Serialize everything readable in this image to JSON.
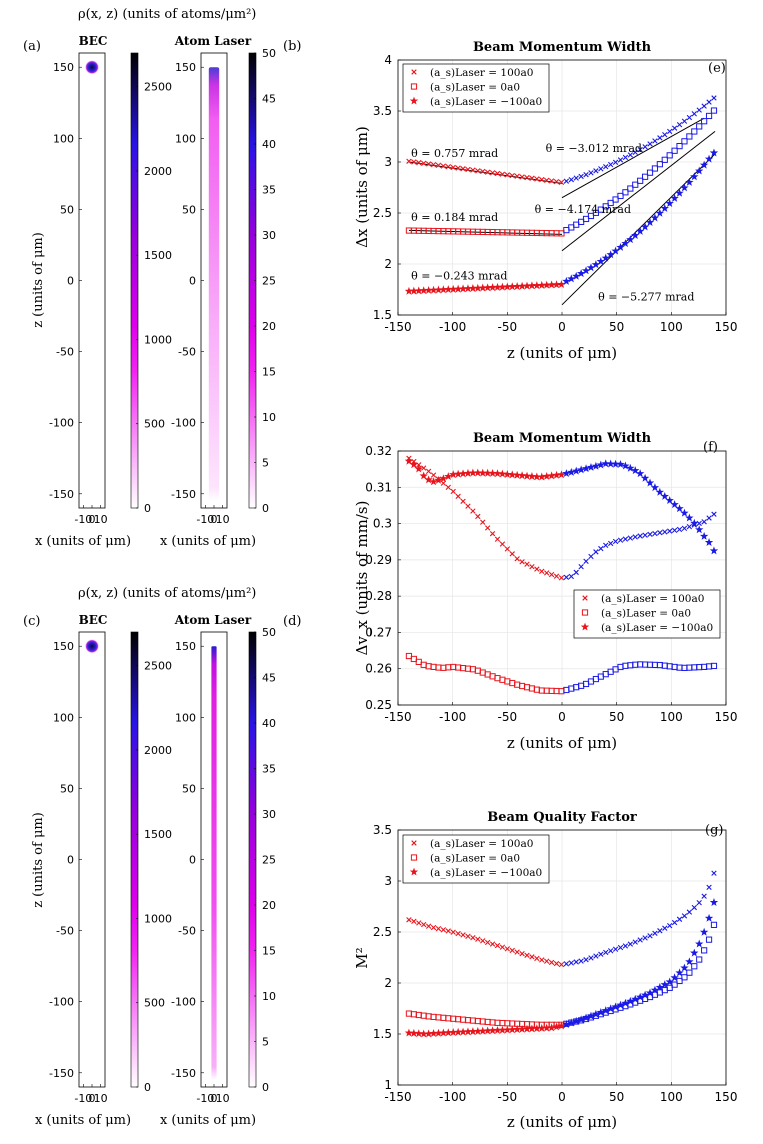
{
  "panel_group_title": "ρ(x, z) (units of atoms/μm²)",
  "panel_labels": {
    "a": "(a)",
    "b": "(b)",
    "c": "(c)",
    "d": "(d)",
    "e": "(e)",
    "f": "(f)",
    "g": "(g)"
  },
  "legend_entries": [
    "(a_s)Laser = 100a0",
    "(a_s)Laser = 0a0",
    "(a_s)Laser = −100a0"
  ],
  "colors": {
    "left_series": "#e8141c",
    "right_series": "#1a1ae6",
    "fit_line": "#000000",
    "grid": "#e6e6e6"
  },
  "chart_data": [
    {
      "id": "a",
      "type": "heatmap",
      "title": "BEC",
      "xlabel": "x (units of μm)",
      "ylabel": "z (units of μm)",
      "xlim": [
        -15,
        15
      ],
      "ylim": [
        -160,
        160
      ],
      "xticks": [
        "-10",
        "0",
        "10"
      ],
      "yticks": [
        "150",
        "100",
        "50",
        "0",
        "-50",
        "-100",
        "-150"
      ],
      "blob": {
        "x": 0,
        "z": 150,
        "radius": 5
      },
      "colorbar": {
        "min": 0,
        "max": 2700,
        "ticks": [
          "0",
          "500",
          "1000",
          "1500",
          "2000",
          "2500"
        ],
        "tick_values": [
          0,
          500,
          1000,
          1500,
          2000,
          2500
        ]
      }
    },
    {
      "id": "b",
      "type": "heatmap",
      "title": "Atom Laser",
      "xlabel": "x (units of μm)",
      "ylabel": "",
      "xlim": [
        -15,
        15
      ],
      "ylim": [
        -160,
        160
      ],
      "xticks": [
        "-10",
        "0",
        "10"
      ],
      "yticks": [
        "150",
        "100",
        "50",
        "0",
        "-50",
        "-100",
        "-150"
      ],
      "beam": {
        "z_top": 150,
        "z_bottom": -155,
        "half_width": 6,
        "profile": "diffuse"
      },
      "colorbar": {
        "min": 0,
        "max": 50,
        "ticks": [
          "0",
          "5",
          "10",
          "15",
          "20",
          "25",
          "30",
          "35",
          "40",
          "45",
          "50"
        ],
        "tick_values": [
          0,
          5,
          10,
          15,
          20,
          25,
          30,
          35,
          40,
          45,
          50
        ]
      }
    },
    {
      "id": "c",
      "type": "heatmap",
      "title": "BEC",
      "xlabel": "x (units of μm)",
      "ylabel": "z (units of μm)",
      "xlim": [
        -15,
        15
      ],
      "ylim": [
        -160,
        160
      ],
      "xticks": [
        "-10",
        "0",
        "10"
      ],
      "yticks": [
        "150",
        "100",
        "50",
        "0",
        "-50",
        "-100",
        "-150"
      ],
      "blob": {
        "x": 0,
        "z": 150,
        "radius": 5
      },
      "colorbar": {
        "min": 0,
        "max": 2700,
        "ticks": [
          "0",
          "500",
          "1000",
          "1500",
          "2000",
          "2500"
        ],
        "tick_values": [
          0,
          500,
          1000,
          1500,
          2000,
          2500
        ]
      }
    },
    {
      "id": "d",
      "type": "heatmap",
      "title": "Atom Laser",
      "xlabel": "x (units of μm)",
      "ylabel": "",
      "xlim": [
        -15,
        15
      ],
      "ylim": [
        -160,
        160
      ],
      "xticks": [
        "-10",
        "0",
        "10"
      ],
      "yticks": [
        "150",
        "100",
        "50",
        "0",
        "-50",
        "-100",
        "-150"
      ],
      "beam": {
        "z_top": 150,
        "z_bottom": -155,
        "half_width": 3,
        "profile": "narrow"
      },
      "colorbar": {
        "min": 0,
        "max": 50,
        "ticks": [
          "0",
          "5",
          "10",
          "15",
          "20",
          "25",
          "30",
          "35",
          "40",
          "45",
          "50"
        ],
        "tick_values": [
          0,
          5,
          10,
          15,
          20,
          25,
          30,
          35,
          40,
          45,
          50
        ]
      }
    },
    {
      "id": "e",
      "type": "scatter",
      "title": "Beam Momentum Width",
      "xlabel": "z (units of μm)",
      "ylabel": "Δx (units of μm)",
      "xlim": [
        -150,
        150
      ],
      "ylim": [
        1.5,
        4
      ],
      "xticks": [
        -150,
        -100,
        -50,
        0,
        50,
        100,
        150
      ],
      "yticks": [
        1.5,
        2,
        2.5,
        3,
        3.5,
        4
      ],
      "legend": "top-left",
      "series": [
        {
          "name": "(a_s)Laser = 100a0",
          "marker": "x",
          "fn": {
            "type": "piecewise",
            "left": {
              "a": 2.8,
              "b": -0.00148,
              "c": 0.0
            },
            "right": {
              "a": 2.8,
              "b": 0.003,
              "c": 2.1e-05,
              "p": 5,
              "k": 2e-06
            },
            "xmin": -140,
            "xmax": 140,
            "step": 4.5
          }
        },
        {
          "name": "(a_s)Laser = 0a0",
          "marker": "square",
          "fn": {
            "type": "piecewise",
            "left": {
              "a": 2.3,
              "b": -0.0002,
              "c": 0.0
            },
            "right": {
              "a": 2.31,
              "b": 0.0055,
              "c": 2.2e-05,
              "p": 5,
              "k": 2e-06
            },
            "xmin": -140,
            "xmax": 140,
            "step": 4.5
          }
        },
        {
          "name": "(a_s)Laser = −100a0",
          "marker": "star",
          "fn": {
            "type": "piecewise",
            "left": {
              "a": 1.8,
              "b": 0.00048,
              "c": 0.0
            },
            "right": {
              "a": 1.81,
              "b": 0.005,
              "c": 3e-05,
              "p": 5,
              "k": 2e-06
            },
            "xmin": -140,
            "xmax": 140,
            "step": 4.5
          }
        }
      ],
      "fit_lines": [
        {
          "x": [
            -140,
            0
          ],
          "y": [
            3.0,
            2.79
          ]
        },
        {
          "x": [
            -140,
            0
          ],
          "y": [
            2.33,
            2.29
          ]
        },
        {
          "x": [
            -140,
            0
          ],
          "y": [
            1.74,
            1.8
          ]
        },
        {
          "x": [
            0,
            130
          ],
          "y": [
            2.65,
            3.43
          ]
        },
        {
          "x": [
            0,
            140
          ],
          "y": [
            2.13,
            3.3
          ]
        },
        {
          "x": [
            0,
            140
          ],
          "y": [
            1.6,
            3.08
          ]
        }
      ],
      "annotations": [
        {
          "text": "θ = 0.757 mrad",
          "x": -138,
          "y": 3.05
        },
        {
          "text": "θ = −3.012 mrad",
          "x": -15,
          "y": 3.1
        },
        {
          "text": "θ = 0.184 mrad",
          "x": -138,
          "y": 2.42
        },
        {
          "text": "θ = −4.174 mrad",
          "x": -25,
          "y": 2.5
        },
        {
          "text": "θ = −0.243 mrad",
          "x": -138,
          "y": 1.85
        },
        {
          "text": "θ = −5.277 mrad",
          "x": 33,
          "y": 1.64
        }
      ]
    },
    {
      "id": "f",
      "type": "scatter",
      "title": "Beam Momentum Width",
      "xlabel": "z (units of μm)",
      "ylabel": "Δv_x (units of mm/s)",
      "xlim": [
        -150,
        150
      ],
      "ylim": [
        0.25,
        0.32
      ],
      "xticks": [
        -150,
        -100,
        -50,
        0,
        50,
        100,
        150
      ],
      "yticks": [
        0.25,
        0.26,
        0.27,
        0.28,
        0.29,
        0.3,
        0.31,
        0.32
      ],
      "legend": "middle-right",
      "series": [
        {
          "name": "(a_s)Laser = 100a0",
          "marker": "x",
          "points": [
            [
              -140,
              0.318
            ],
            [
              -120,
              0.314
            ],
            [
              -100,
              0.309
            ],
            [
              -80,
              0.303
            ],
            [
              -60,
              0.296
            ],
            [
              -40,
              0.29
            ],
            [
              -20,
              0.287
            ],
            [
              0,
              0.285
            ],
            [
              10,
              0.2855
            ],
            [
              20,
              0.289
            ],
            [
              30,
              0.292
            ],
            [
              40,
              0.294
            ],
            [
              50,
              0.2952
            ],
            [
              70,
              0.2965
            ],
            [
              90,
              0.2975
            ],
            [
              110,
              0.2985
            ],
            [
              130,
              0.3005
            ],
            [
              140,
              0.3028
            ]
          ]
        },
        {
          "name": "(a_s)Laser = 0a0",
          "marker": "square",
          "points": [
            [
              -140,
              0.2635
            ],
            [
              -125,
              0.2608
            ],
            [
              -110,
              0.2602
            ],
            [
              -100,
              0.2605
            ],
            [
              -80,
              0.2598
            ],
            [
              -60,
              0.2575
            ],
            [
              -40,
              0.2555
            ],
            [
              -20,
              0.254
            ],
            [
              0,
              0.2538
            ],
            [
              20,
              0.2555
            ],
            [
              40,
              0.2585
            ],
            [
              55,
              0.2607
            ],
            [
              70,
              0.2612
            ],
            [
              90,
              0.261
            ],
            [
              110,
              0.2602
            ],
            [
              130,
              0.2605
            ],
            [
              140,
              0.2608
            ]
          ]
        },
        {
          "name": "(a_s)Laser = −100a0",
          "marker": "star",
          "points": [
            [
              -140,
              0.3172
            ],
            [
              -132,
              0.3155
            ],
            [
              -125,
              0.3125
            ],
            [
              -118,
              0.3115
            ],
            [
              -110,
              0.3122
            ],
            [
              -100,
              0.3135
            ],
            [
              -80,
              0.314
            ],
            [
              -60,
              0.3138
            ],
            [
              -40,
              0.3133
            ],
            [
              -20,
              0.3128
            ],
            [
              0,
              0.3135
            ],
            [
              20,
              0.315
            ],
            [
              40,
              0.3165
            ],
            [
              55,
              0.3163
            ],
            [
              70,
              0.3142
            ],
            [
              90,
              0.3085
            ],
            [
              110,
              0.3035
            ],
            [
              120,
              0.3005
            ],
            [
              130,
              0.2965
            ],
            [
              138,
              0.2935
            ],
            [
              140,
              0.2915
            ]
          ]
        }
      ]
    },
    {
      "id": "g",
      "type": "scatter",
      "title": "Beam Quality Factor",
      "xlabel": "z (units of μm)",
      "ylabel": "M²",
      "xlim": [
        -150,
        150
      ],
      "ylim": [
        1,
        3.5
      ],
      "xticks": [
        -150,
        -100,
        -50,
        0,
        50,
        100,
        150
      ],
      "yticks": [
        1,
        1.5,
        2,
        2.5,
        3,
        3.5
      ],
      "legend": "top-left",
      "series": [
        {
          "name": "(a_s)Laser = 100a0",
          "marker": "x",
          "points": [
            [
              -140,
              2.62
            ],
            [
              -120,
              2.55
            ],
            [
              -100,
              2.5
            ],
            [
              -80,
              2.44
            ],
            [
              -60,
              2.37
            ],
            [
              -40,
              2.3
            ],
            [
              -20,
              2.23
            ],
            [
              -5,
              2.19
            ],
            [
              0,
              2.18
            ],
            [
              20,
              2.22
            ],
            [
              40,
              2.3
            ],
            [
              60,
              2.37
            ],
            [
              80,
              2.46
            ],
            [
              100,
              2.57
            ],
            [
              115,
              2.68
            ],
            [
              125,
              2.78
            ],
            [
              132,
              2.88
            ],
            [
              138,
              3.02
            ],
            [
              141,
              3.19
            ]
          ]
        },
        {
          "name": "(a_s)Laser = 0a0",
          "marker": "square",
          "points": [
            [
              -140,
              1.7
            ],
            [
              -120,
              1.67
            ],
            [
              -100,
              1.65
            ],
            [
              -80,
              1.63
            ],
            [
              -60,
              1.61
            ],
            [
              -40,
              1.6
            ],
            [
              -20,
              1.59
            ],
            [
              0,
              1.59
            ],
            [
              20,
              1.64
            ],
            [
              40,
              1.71
            ],
            [
              60,
              1.78
            ],
            [
              80,
              1.86
            ],
            [
              100,
              1.96
            ],
            [
              115,
              2.08
            ],
            [
              125,
              2.22
            ],
            [
              132,
              2.36
            ],
            [
              137,
              2.49
            ],
            [
              141,
              2.65
            ]
          ]
        },
        {
          "name": "(a_s)Laser = −100a0",
          "marker": "star",
          "points": [
            [
              -140,
              1.51
            ],
            [
              -125,
              1.5
            ],
            [
              -110,
              1.51
            ],
            [
              -90,
              1.52
            ],
            [
              -70,
              1.53
            ],
            [
              -50,
              1.54
            ],
            [
              -30,
              1.55
            ],
            [
              -10,
              1.56
            ],
            [
              0,
              1.58
            ],
            [
              20,
              1.65
            ],
            [
              40,
              1.73
            ],
            [
              60,
              1.81
            ],
            [
              80,
              1.9
            ],
            [
              100,
              2.02
            ],
            [
              115,
              2.18
            ],
            [
              125,
              2.37
            ],
            [
              132,
              2.55
            ],
            [
              137,
              2.72
            ],
            [
              141,
              2.86
            ]
          ]
        }
      ]
    }
  ]
}
